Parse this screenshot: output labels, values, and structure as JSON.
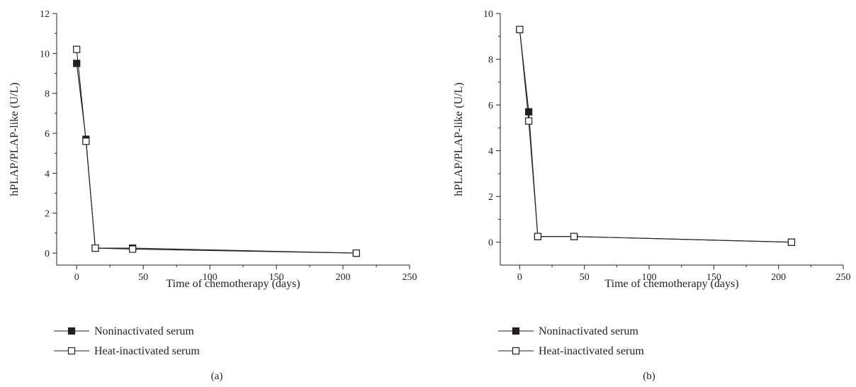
{
  "chart_data": [
    {
      "type": "line",
      "panel_label": "(a)",
      "xlabel": "Time of chemotherapy (days)",
      "ylabel": "hPLAP/PLAP-like (U/L)",
      "xlim": [
        -15,
        250
      ],
      "ylim": [
        -0.6,
        12
      ],
      "xticks": [
        0,
        50,
        100,
        150,
        200,
        250
      ],
      "yticks": [
        0,
        2,
        4,
        6,
        8,
        10,
        12
      ],
      "grid": false,
      "legend_position": "below",
      "series": [
        {
          "name": "Noninactivated serum",
          "marker": "filled-square",
          "x": [
            0,
            7,
            14,
            42,
            210
          ],
          "y": [
            9.5,
            5.7,
            0.25,
            0.25,
            0.0
          ]
        },
        {
          "name": "Heat-inactivated serum",
          "marker": "open-square",
          "x": [
            0,
            7,
            14,
            42,
            210
          ],
          "y": [
            10.2,
            5.6,
            0.25,
            0.2,
            0.0
          ]
        }
      ]
    },
    {
      "type": "line",
      "panel_label": "(b)",
      "xlabel": "Time of chemotherapy (days)",
      "ylabel": "hPLAP/PLAP-like (U/L)",
      "xlim": [
        -15,
        250
      ],
      "ylim": [
        -1,
        10
      ],
      "xticks": [
        0,
        50,
        100,
        150,
        200,
        250
      ],
      "yticks": [
        0,
        2,
        4,
        6,
        8,
        10
      ],
      "grid": false,
      "legend_position": "below",
      "series": [
        {
          "name": "Noninactivated serum",
          "marker": "filled-square",
          "x": [
            0,
            7,
            14,
            42,
            210
          ],
          "y": [
            9.3,
            5.7,
            0.25,
            0.25,
            0.0
          ]
        },
        {
          "name": "Heat-inactivated serum",
          "marker": "open-square",
          "x": [
            0,
            7,
            14,
            42,
            210
          ],
          "y": [
            9.3,
            5.3,
            0.25,
            0.25,
            0.0
          ]
        }
      ]
    }
  ]
}
